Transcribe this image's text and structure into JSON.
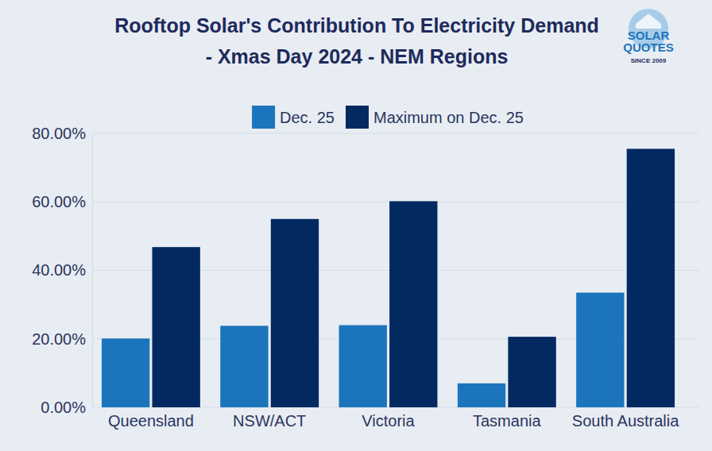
{
  "chart_data": {
    "type": "bar",
    "title": "Rooftop Solar's Contribution To Electricity Demand - Xmas Day 2024 - NEM Regions",
    "categories": [
      "Queensland",
      "NSW/ACT",
      "Victoria",
      "Tasmania",
      "South Australia"
    ],
    "series": [
      {
        "name": "Dec. 25",
        "color": "#1c75bc",
        "values": [
          20.1,
          23.8,
          24.0,
          7.0,
          33.5
        ]
      },
      {
        "name": "Maximum on Dec. 25",
        "color": "#022a61",
        "values": [
          46.8,
          55.0,
          60.2,
          20.6,
          75.5
        ]
      }
    ],
    "ylim": [
      0,
      80
    ],
    "yticks": [
      {
        "value": 0,
        "label": "0.00%"
      },
      {
        "value": 20,
        "label": "20.00%"
      },
      {
        "value": 40,
        "label": "40.00%"
      },
      {
        "value": 60,
        "label": "60.00%"
      },
      {
        "value": 80,
        "label": "80.00%"
      }
    ],
    "grid": true,
    "legend": "top",
    "annotations": [
      "SOLAR",
      "QUOTES",
      "SINCE 2009"
    ]
  }
}
